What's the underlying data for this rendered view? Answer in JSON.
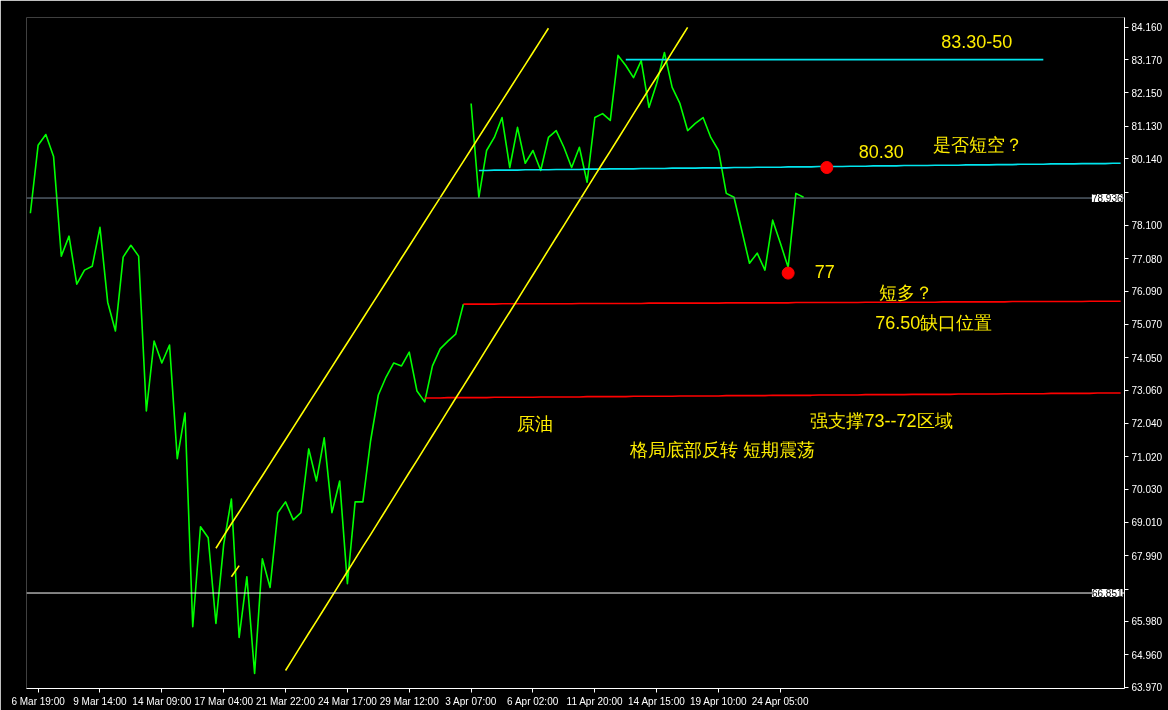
{
  "chart_data": {
    "type": "line",
    "categories": [
      null,
      "6 Mar 19:00",
      null,
      null,
      null,
      null,
      null,
      null,
      null,
      "9 Mar 14:00",
      null,
      null,
      null,
      null,
      null,
      null,
      null,
      "14 Mar 09:00",
      null,
      null,
      null,
      null,
      null,
      null,
      null,
      "17 Mar 04:00",
      null,
      null,
      null,
      null,
      null,
      null,
      null,
      "21 Mar 22:00",
      null,
      null,
      null,
      null,
      null,
      null,
      null,
      "24 Mar 17:00",
      null,
      null,
      null,
      null,
      null,
      null,
      null,
      "29 Mar 12:00",
      null,
      null,
      null,
      null,
      null,
      null,
      null,
      "3 Apr 07:00",
      null,
      null,
      null,
      null,
      null,
      null,
      null,
      "6 Apr 02:00",
      null,
      null,
      null,
      null,
      null,
      null,
      null,
      "11 Apr 20:00",
      null,
      null,
      null,
      null,
      null,
      null,
      null,
      "14 Apr 15:00",
      null,
      null,
      null,
      null,
      null,
      null,
      null,
      "19 Apr 10:00",
      null,
      null,
      null,
      null,
      null,
      null,
      null,
      "24 Apr 05:00",
      null,
      null,
      null,
      null,
      null,
      null,
      null,
      null,
      null,
      null,
      null,
      null,
      null,
      null,
      null,
      null,
      null,
      null,
      null,
      null,
      null,
      null,
      null,
      null,
      null,
      null,
      null,
      null,
      null,
      null,
      null,
      null,
      null,
      null,
      null,
      null,
      null,
      null,
      null,
      null,
      null,
      null,
      null,
      null
    ],
    "ylim": [
      63.93,
      84.46
    ],
    "yticks": [
      {
        "value": 84.16,
        "label": "84.160"
      },
      {
        "value": 83.17,
        "label": "83.170"
      },
      {
        "value": 82.15,
        "label": "82.150"
      },
      {
        "value": 81.13,
        "label": "81.130"
      },
      {
        "value": 80.14,
        "label": "80.140"
      },
      {
        "value": 79.12,
        "label": null
      },
      {
        "value": 78.1,
        "label": "78.100"
      },
      {
        "value": 77.08,
        "label": "77.080"
      },
      {
        "value": 76.09,
        "label": "76.090"
      },
      {
        "value": 75.07,
        "label": "75.070"
      },
      {
        "value": 74.05,
        "label": "74.050"
      },
      {
        "value": 73.06,
        "label": "73.060"
      },
      {
        "value": 72.04,
        "label": "72.040"
      },
      {
        "value": 71.02,
        "label": "71.020"
      },
      {
        "value": 70.03,
        "label": "70.030"
      },
      {
        "value": 69.01,
        "label": "69.010"
      },
      {
        "value": 67.99,
        "label": "67.990"
      },
      {
        "value": 66.97,
        "label": null
      },
      {
        "value": 65.98,
        "label": "65.980"
      },
      {
        "value": 64.96,
        "label": "64.960"
      },
      {
        "value": 63.97,
        "label": "63.970"
      }
    ],
    "series": [
      {
        "color": "#00ff00",
        "values": [
          78.47,
          80.55,
          80.88,
          80.21,
          77.16,
          77.77,
          76.3,
          76.73,
          76.85,
          78.04,
          75.75,
          74.87,
          77.13,
          77.49,
          77.16,
          72.42,
          74.56,
          73.89,
          74.44,
          70.96,
          72.36,
          65.82,
          68.88,
          68.54,
          65.92,
          68.33,
          69.73,
          65.49,
          67.35,
          64.39,
          67.9,
          67.02,
          69.31,
          69.64,
          69.09,
          69.31,
          71.26,
          70.28,
          71.6,
          69.31,
          70.28,
          67.14,
          69.64,
          69.64,
          71.51,
          72.91,
          73.46,
          73.89,
          73.8,
          74.22,
          73.03,
          72.7,
          73.8,
          74.32,
          74.56,
          74.77,
          75.69,
          null,
          null,
          null,
          null,
          null,
          null,
          null,
          null,
          null,
          null,
          null,
          null,
          null,
          null,
          null,
          null,
          null,
          null,
          null,
          null,
          null,
          null,
          null,
          null,
          null,
          null,
          null,
          null,
          null,
          null,
          null,
          null,
          null,
          null,
          null,
          null,
          null,
          null,
          null,
          null,
          null,
          null,
          null,
          null,
          null,
          null,
          null,
          null,
          null,
          null,
          null,
          null,
          null,
          null,
          null,
          null,
          null,
          null,
          null,
          null,
          null,
          null,
          null,
          null,
          null,
          null,
          null,
          null,
          null,
          null,
          null,
          null,
          null,
          null,
          null,
          null,
          null,
          null,
          null,
          null,
          null,
          null,
          null,
          null,
          null
        ]
      },
      {
        "color": "#00ff00",
        "values": [
          null,
          null,
          null,
          null,
          null,
          null,
          null,
          null,
          null,
          null,
          null,
          null,
          null,
          null,
          null,
          null,
          null,
          null,
          null,
          null,
          null,
          null,
          null,
          null,
          null,
          null,
          null,
          null,
          null,
          null,
          null,
          null,
          null,
          null,
          null,
          null,
          null,
          null,
          null,
          null,
          null,
          null,
          null,
          null,
          null,
          null,
          null,
          null,
          null,
          null,
          null,
          null,
          null,
          null,
          null,
          null,
          null,
          81.83,
          78.96,
          80.39,
          80.79,
          81.4,
          79.87,
          81.1,
          80.0,
          80.39,
          79.78,
          80.79,
          81.0,
          80.49,
          79.87,
          80.49,
          79.42,
          81.4,
          81.52,
          81.31,
          83.3,
          82.99,
          82.62,
          83.14,
          81.71,
          82.44,
          83.39,
          82.32,
          81.83,
          81.0,
          81.22,
          81.4,
          80.79,
          80.39,
          79.08,
          78.96,
          77.95,
          76.94,
          77.25,
          76.73,
          78.26,
          77.55,
          76.82,
          79.08,
          78.96,
          null,
          null,
          null,
          null,
          null,
          null,
          null,
          null,
          null,
          null,
          null,
          null,
          null,
          null,
          null,
          null,
          null,
          null,
          null,
          null,
          null,
          null,
          null,
          null,
          null,
          null,
          null,
          null,
          null,
          null,
          null,
          null,
          null,
          null,
          null,
          null,
          null,
          null,
          null,
          null,
          null
        ]
      },
      {
        "color": "#00e5ee",
        "values": [
          null,
          null,
          null,
          null,
          null,
          null,
          null,
          null,
          null,
          null,
          null,
          null,
          null,
          null,
          null,
          null,
          null,
          null,
          null,
          null,
          null,
          null,
          null,
          null,
          null,
          null,
          null,
          null,
          null,
          null,
          null,
          null,
          null,
          null,
          null,
          null,
          null,
          null,
          null,
          null,
          null,
          null,
          null,
          null,
          null,
          null,
          null,
          null,
          null,
          null,
          null,
          null,
          null,
          null,
          null,
          null,
          null,
          null,
          null,
          null,
          null,
          null,
          null,
          null,
          null,
          null,
          null,
          null,
          null,
          null,
          null,
          null,
          null,
          null,
          null,
          null,
          null,
          83.17,
          83.17,
          83.17,
          83.17,
          83.17,
          83.17,
          83.17,
          83.17,
          83.17,
          83.17,
          83.17,
          83.17,
          83.17,
          83.17,
          83.17,
          83.17,
          83.17,
          83.17,
          83.17,
          83.17,
          83.17,
          83.17,
          83.17,
          83.17,
          83.17,
          83.17,
          83.17,
          83.17,
          83.17,
          83.17,
          83.17,
          83.17,
          83.17,
          83.17,
          83.17,
          83.17,
          83.17,
          83.17,
          83.17,
          83.17,
          83.17,
          83.17,
          83.17,
          83.17,
          83.17,
          83.17,
          83.17,
          83.17,
          83.17,
          83.17,
          83.17,
          83.17,
          83.17,
          83.17,
          83.17,
          null,
          null,
          null,
          null,
          null,
          null,
          null,
          null,
          null,
          null
        ]
      },
      {
        "color": "#00e5ee",
        "values": [
          null,
          null,
          null,
          null,
          null,
          null,
          null,
          null,
          null,
          null,
          null,
          null,
          null,
          null,
          null,
          null,
          null,
          null,
          null,
          null,
          null,
          null,
          null,
          null,
          null,
          null,
          null,
          null,
          null,
          null,
          null,
          null,
          null,
          null,
          null,
          null,
          null,
          null,
          null,
          null,
          null,
          null,
          null,
          null,
          null,
          null,
          null,
          null,
          null,
          null,
          null,
          null,
          null,
          null,
          null,
          null,
          null,
          null,
          79.78,
          79.78,
          79.79,
          79.79,
          79.79,
          79.79,
          79.8,
          79.8,
          79.8,
          79.8,
          79.81,
          79.81,
          79.81,
          79.81,
          79.82,
          79.82,
          79.82,
          79.83,
          79.83,
          79.83,
          79.83,
          79.84,
          79.84,
          79.84,
          79.84,
          79.85,
          79.85,
          79.85,
          79.85,
          79.86,
          79.86,
          79.86,
          79.86,
          79.87,
          79.87,
          79.87,
          79.88,
          79.88,
          79.88,
          79.88,
          79.89,
          79.89,
          79.89,
          79.89,
          79.9,
          79.9,
          79.9,
          79.9,
          79.91,
          79.91,
          79.91,
          79.92,
          79.92,
          79.92,
          79.92,
          79.93,
          79.93,
          79.93,
          79.93,
          79.94,
          79.94,
          79.94,
          79.94,
          79.95,
          79.95,
          79.95,
          79.95,
          79.96,
          79.96,
          79.96,
          79.97,
          79.97,
          79.97,
          79.97,
          79.98,
          79.98,
          79.98,
          79.98,
          79.99,
          79.99,
          79.99,
          79.99,
          80.0,
          80.0
        ]
      },
      {
        "color": "#ff0000",
        "values": [
          null,
          null,
          null,
          null,
          null,
          null,
          null,
          null,
          null,
          null,
          null,
          null,
          null,
          null,
          null,
          null,
          null,
          null,
          null,
          null,
          null,
          null,
          null,
          null,
          null,
          null,
          null,
          null,
          null,
          null,
          null,
          null,
          null,
          null,
          null,
          null,
          null,
          null,
          null,
          null,
          null,
          null,
          null,
          null,
          null,
          null,
          null,
          null,
          null,
          null,
          null,
          null,
          null,
          null,
          null,
          null,
          75.69,
          75.69,
          75.69,
          75.69,
          75.69,
          75.7,
          75.7,
          75.7,
          75.7,
          75.7,
          75.7,
          75.7,
          75.7,
          75.7,
          75.7,
          75.71,
          75.71,
          75.71,
          75.71,
          75.71,
          75.71,
          75.71,
          75.71,
          75.71,
          75.72,
          75.72,
          75.72,
          75.72,
          75.72,
          75.72,
          75.72,
          75.72,
          75.72,
          75.72,
          75.73,
          75.73,
          75.73,
          75.73,
          75.73,
          75.73,
          75.73,
          75.73,
          75.73,
          75.74,
          75.74,
          75.74,
          75.74,
          75.74,
          75.74,
          75.74,
          75.74,
          75.74,
          75.75,
          75.75,
          75.75,
          75.75,
          75.75,
          75.75,
          75.75,
          75.75,
          75.75,
          75.75,
          75.76,
          75.76,
          75.76,
          75.76,
          75.76,
          75.76,
          75.76,
          75.76,
          75.76,
          75.77,
          75.77,
          75.77,
          75.77,
          75.77,
          75.77,
          75.77,
          75.77,
          75.77,
          75.77,
          75.78,
          75.78,
          75.78,
          75.78,
          75.78
        ]
      },
      {
        "color": "#ff0000",
        "values": [
          null,
          null,
          null,
          null,
          null,
          null,
          null,
          null,
          null,
          null,
          null,
          null,
          null,
          null,
          null,
          null,
          null,
          null,
          null,
          null,
          null,
          null,
          null,
          null,
          null,
          null,
          null,
          null,
          null,
          null,
          null,
          null,
          null,
          null,
          null,
          null,
          null,
          null,
          null,
          null,
          null,
          null,
          null,
          null,
          null,
          null,
          null,
          null,
          null,
          null,
          null,
          72.82,
          72.82,
          72.82,
          72.83,
          72.83,
          72.83,
          72.83,
          72.83,
          72.83,
          72.84,
          72.84,
          72.84,
          72.84,
          72.84,
          72.84,
          72.85,
          72.85,
          72.85,
          72.85,
          72.85,
          72.85,
          72.86,
          72.86,
          72.86,
          72.86,
          72.86,
          72.86,
          72.87,
          72.87,
          72.87,
          72.87,
          72.87,
          72.87,
          72.88,
          72.88,
          72.88,
          72.88,
          72.88,
          72.88,
          72.89,
          72.89,
          72.89,
          72.89,
          72.89,
          72.89,
          72.9,
          72.9,
          72.9,
          72.9,
          72.9,
          72.9,
          72.91,
          72.91,
          72.91,
          72.91,
          72.91,
          72.91,
          72.92,
          72.92,
          72.92,
          72.92,
          72.92,
          72.92,
          72.93,
          72.93,
          72.93,
          72.93,
          72.93,
          72.93,
          72.94,
          72.94,
          72.94,
          72.94,
          72.94,
          72.94,
          72.95,
          72.95,
          72.95,
          72.95,
          72.95,
          72.95,
          72.96,
          72.96,
          72.96,
          72.96,
          72.96,
          72.96,
          72.97,
          72.97,
          72.97,
          72.97
        ]
      },
      {
        "color": "#ffff00",
        "values": [
          null,
          null,
          null,
          null,
          null,
          null,
          null,
          null,
          null,
          null,
          null,
          null,
          null,
          null,
          null,
          null,
          null,
          null,
          null,
          null,
          null,
          null,
          null,
          null,
          68.22,
          68.6,
          68.97,
          69.33,
          69.7,
          70.08,
          70.44,
          70.81,
          71.18,
          71.55,
          71.92,
          72.29,
          72.66,
          73.03,
          73.4,
          73.77,
          74.14,
          74.51,
          74.88,
          75.25,
          75.62,
          75.99,
          76.36,
          76.73,
          77.1,
          77.47,
          77.84,
          78.21,
          78.58,
          78.95,
          79.32,
          79.69,
          80.06,
          80.43,
          80.8,
          81.17,
          81.54,
          81.91,
          82.28,
          82.65,
          83.02,
          83.39,
          83.76,
          84.13,
          null,
          null,
          null,
          null,
          null,
          null,
          null,
          null,
          null,
          null,
          null,
          null,
          null,
          null,
          null,
          null,
          null,
          null,
          null,
          null,
          null,
          null,
          null,
          null,
          null,
          null,
          null,
          null,
          null,
          null,
          null,
          null,
          null,
          null,
          null,
          null,
          null,
          null,
          null,
          null,
          null,
          null,
          null,
          null,
          null,
          null,
          null,
          null,
          null,
          null,
          null,
          null,
          null,
          null,
          null,
          null,
          null,
          null,
          null,
          null,
          null,
          null,
          null,
          null,
          null,
          null,
          null,
          null,
          null,
          null,
          null,
          null,
          null,
          null
        ]
      },
      {
        "color": "#ffff00",
        "values": [
          null,
          null,
          null,
          null,
          null,
          null,
          null,
          null,
          null,
          null,
          null,
          null,
          null,
          null,
          null,
          null,
          null,
          null,
          null,
          null,
          null,
          null,
          null,
          null,
          null,
          null,
          null,
          null,
          null,
          null,
          null,
          null,
          null,
          64.48,
          64.86,
          65.24,
          65.62,
          65.99,
          66.37,
          66.75,
          67.13,
          67.51,
          67.89,
          68.27,
          68.64,
          69.02,
          69.4,
          69.78,
          70.16,
          70.54,
          70.91,
          71.29,
          71.67,
          72.05,
          72.43,
          72.81,
          73.18,
          73.56,
          73.94,
          74.32,
          74.7,
          75.08,
          75.45,
          75.83,
          76.21,
          76.59,
          76.97,
          77.35,
          77.73,
          78.1,
          78.48,
          78.86,
          79.24,
          79.62,
          80.0,
          80.37,
          80.75,
          81.13,
          81.51,
          81.89,
          82.27,
          82.64,
          83.02,
          83.4,
          83.78,
          84.16,
          null,
          null,
          null,
          null,
          null,
          null,
          null,
          null,
          null,
          null,
          null,
          null,
          null,
          null,
          null,
          null,
          null,
          null,
          null,
          null,
          null,
          null,
          null,
          null,
          null,
          null,
          null,
          null,
          null,
          null,
          null,
          null,
          null,
          null,
          null,
          null,
          null,
          null,
          null,
          null,
          null,
          null,
          null,
          null,
          null,
          null,
          null,
          null,
          null,
          null,
          null,
          null,
          null,
          null,
          null,
          null
        ]
      },
      {
        "color": "#ffff00",
        "values": [
          null,
          null,
          null,
          null,
          null,
          null,
          null,
          null,
          null,
          null,
          null,
          null,
          null,
          null,
          null,
          null,
          null,
          null,
          null,
          null,
          null,
          null,
          null,
          null,
          null,
          null,
          67.35,
          67.69,
          null,
          null,
          null,
          null,
          null,
          null,
          null,
          null,
          null,
          null,
          null,
          null,
          null,
          null,
          null,
          null,
          null,
          null,
          null,
          null,
          null,
          null,
          null,
          null,
          null,
          null,
          null,
          null,
          null,
          null,
          null,
          null,
          null,
          null,
          null,
          null,
          null,
          null,
          null,
          null,
          null,
          null,
          null,
          null,
          null,
          null,
          null,
          null,
          null,
          null,
          null,
          null,
          null,
          null,
          null,
          null,
          null,
          null,
          null,
          null,
          null,
          null,
          null,
          null,
          null,
          null,
          null,
          null,
          null,
          null,
          null,
          null,
          null,
          null,
          null,
          null,
          null,
          null,
          null,
          null,
          null,
          null,
          null,
          null,
          null,
          null,
          null,
          null,
          null,
          null,
          null,
          null,
          null,
          null,
          null,
          null,
          null,
          null,
          null,
          null,
          null,
          null,
          null,
          null,
          null,
          null,
          null,
          null,
          null,
          null,
          null,
          null,
          null,
          null
        ]
      },
      {
        "type": "scatter",
        "color": "#ff0000",
        "marker": "circle",
        "values": [
          null,
          null,
          null,
          null,
          null,
          null,
          null,
          null,
          null,
          null,
          null,
          null,
          null,
          null,
          null,
          null,
          null,
          null,
          null,
          null,
          null,
          null,
          null,
          null,
          null,
          null,
          null,
          null,
          null,
          null,
          null,
          null,
          null,
          null,
          null,
          null,
          null,
          null,
          null,
          null,
          null,
          null,
          null,
          null,
          null,
          null,
          null,
          null,
          null,
          null,
          null,
          null,
          null,
          null,
          null,
          null,
          null,
          null,
          null,
          null,
          null,
          null,
          null,
          null,
          null,
          null,
          null,
          null,
          null,
          null,
          null,
          null,
          null,
          null,
          null,
          null,
          null,
          null,
          null,
          null,
          null,
          null,
          null,
          null,
          null,
          null,
          null,
          null,
          null,
          null,
          null,
          null,
          null,
          null,
          null,
          null,
          null,
          null,
          76.64,
          null,
          null,
          null,
          null,
          79.87,
          null,
          null,
          null,
          null,
          null,
          null,
          null,
          null,
          null,
          null,
          null,
          null,
          null,
          null,
          null,
          null,
          null,
          null,
          null,
          null,
          null,
          null,
          null,
          null,
          null,
          null,
          null,
          null,
          null,
          null,
          null,
          null,
          null,
          null,
          null,
          null,
          null,
          null
        ]
      }
    ],
    "ref_lines": [
      {
        "axis": "y",
        "value": 78.936,
        "label": "78.936",
        "color": "#778899"
      },
      {
        "axis": "y",
        "value": 66.851,
        "label": "66.851",
        "color": "#ffffff"
      }
    ],
    "annotations": [
      "83.30-50",
      "是否短空？",
      "80.30",
      "77",
      "短多？",
      "76.50缺口位置",
      "强支撑73--72区域",
      "原油",
      "格局底部反转  短期震荡"
    ]
  }
}
